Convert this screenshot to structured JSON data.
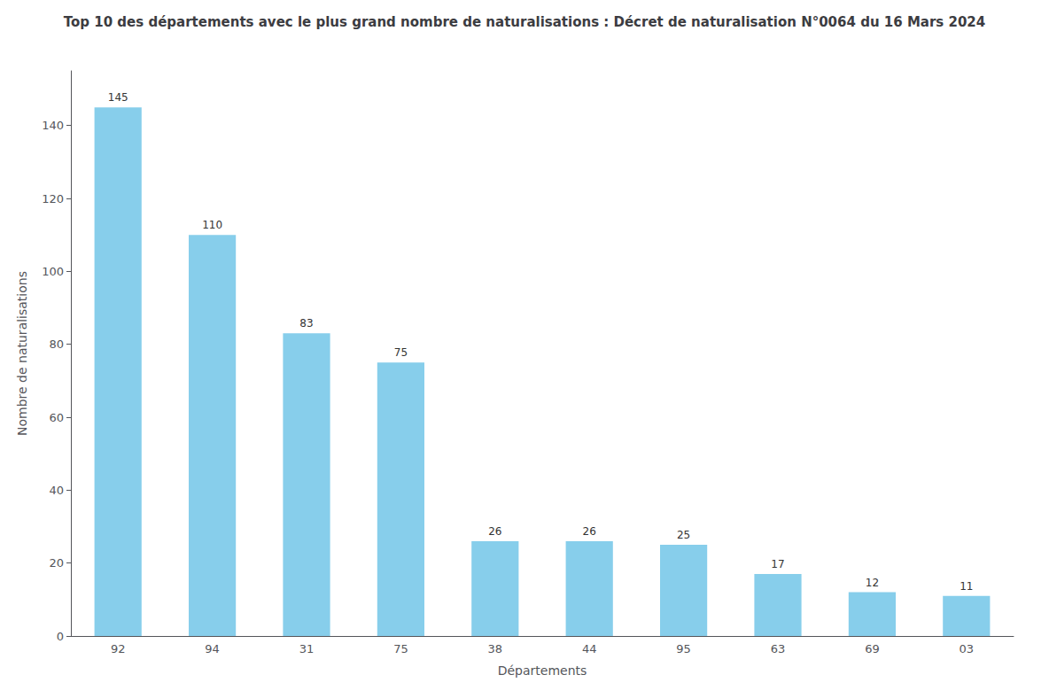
{
  "chart_data": {
    "type": "bar",
    "title": "Top 10 des départements avec le plus grand nombre de naturalisations : Décret de naturalisation N°0064 du 16 Mars 2024",
    "xlabel": "Départements",
    "ylabel": "Nombre de naturalisations",
    "categories": [
      "92",
      "94",
      "31",
      "75",
      "38",
      "44",
      "95",
      "63",
      "69",
      "03"
    ],
    "values": [
      145,
      110,
      83,
      75,
      26,
      26,
      25,
      17,
      12,
      11
    ],
    "color": "#87CEEB",
    "ylim": [
      0,
      155
    ],
    "yticks": [
      0,
      20,
      40,
      60,
      80,
      100,
      120,
      140
    ],
    "grid": false,
    "data_labels": true
  }
}
